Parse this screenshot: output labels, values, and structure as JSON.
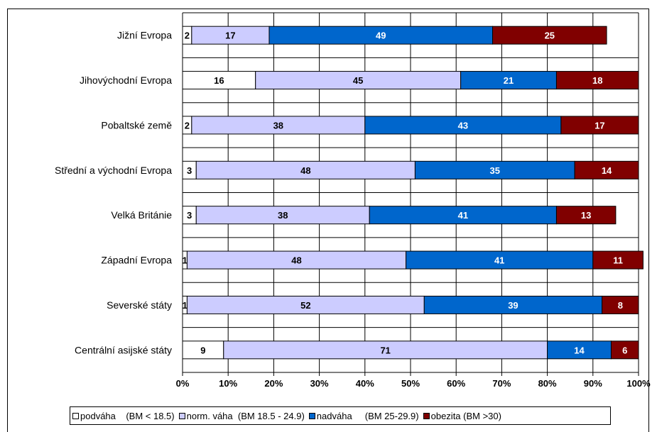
{
  "chart_data": {
    "type": "bar",
    "orientation": "horizontal",
    "stacked": true,
    "categories": [
      "Jižní Evropa",
      "Jihovýchodní Evropa",
      "Pobaltské země",
      "Střední a východní Evropa",
      "Velká Británie",
      "Západní Evropa",
      "Severské státy",
      "Centrální asijské státy"
    ],
    "series": [
      {
        "name": "podváha    (BM < 18.5)",
        "color": "#ffffff",
        "label_color": "#000000",
        "values": [
          2,
          16,
          2,
          3,
          3,
          1,
          1,
          9
        ]
      },
      {
        "name": "norm. váha  (BM 18.5 - 24.9)",
        "color": "#ccccff",
        "label_color": "#000000",
        "values": [
          17,
          45,
          38,
          48,
          38,
          48,
          52,
          71
        ]
      },
      {
        "name": "nadváha     (BM 25-29.9)",
        "color": "#0066cc",
        "label_color": "#ffffff",
        "values": [
          49,
          21,
          43,
          35,
          41,
          41,
          39,
          14
        ]
      },
      {
        "name": "obezita (BM >30)",
        "color": "#800000",
        "label_color": "#ffffff",
        "values": [
          25,
          18,
          17,
          14,
          13,
          11,
          8,
          6
        ]
      }
    ],
    "x_ticks": [
      "0%",
      "10%",
      "20%",
      "30%",
      "40%",
      "50%",
      "60%",
      "70%",
      "80%",
      "90%",
      "100%"
    ],
    "xlim": [
      0,
      100
    ],
    "grid": true,
    "legend_position": "bottom"
  }
}
